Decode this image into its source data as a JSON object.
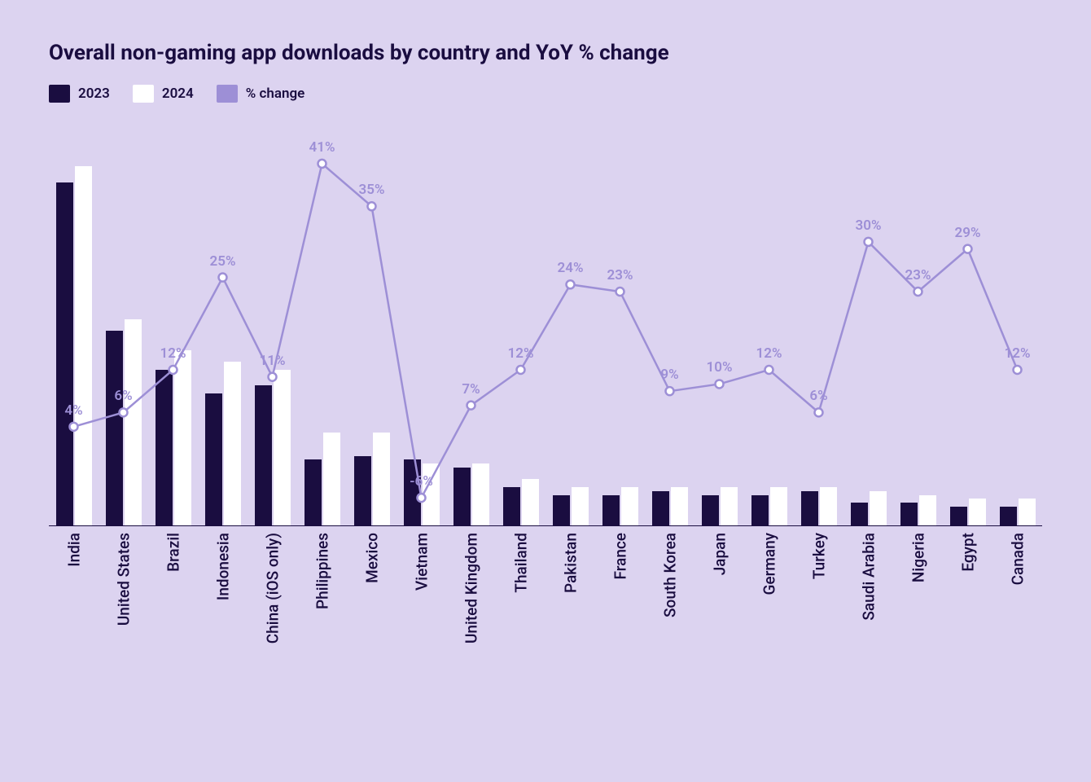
{
  "title": "Overall non-gaming app downloads by country and YoY % change",
  "legend": {
    "series2023": "2023",
    "series2024": "2024",
    "pctChange": "% change"
  },
  "colors": {
    "background": "#dcd3f0",
    "bar2023": "#1a0d40",
    "bar2024": "#ffffff",
    "line": "#9d8fd6",
    "lineWidth": 2.5,
    "markerFill": "#ffffff",
    "markerStroke": "#9d8fd6",
    "markerStrokeWidth": 2.5,
    "markerRadius": 5,
    "titleColor": "#1a0d40",
    "labelColor": "#1a0d40",
    "pctLabelColor": "#9d8fd6",
    "baselineColor": "#1a0d40",
    "titleFontSize": 26,
    "xLabelFontSize": 19,
    "pctLabelFontSize": 17,
    "legendFontSize": 17
  },
  "chart": {
    "type": "grouped-bar-with-line",
    "barMaxValue": 100,
    "pctRange": [
      -10,
      45
    ],
    "barWidthPx": 21,
    "barGapPx": 2,
    "plotHeightPx": 480,
    "countries": [
      {
        "name": "India",
        "v2023": 88,
        "v2024": 92,
        "pct": 4
      },
      {
        "name": "United States",
        "v2023": 50,
        "v2024": 53,
        "pct": 6
      },
      {
        "name": "Brazil",
        "v2023": 40,
        "v2024": 45,
        "pct": 12
      },
      {
        "name": "Indonesia",
        "v2023": 34,
        "v2024": 42,
        "pct": 25
      },
      {
        "name": "China (iOS only)",
        "v2023": 36,
        "v2024": 40,
        "pct": 11
      },
      {
        "name": "Philippines",
        "v2023": 17,
        "v2024": 24,
        "pct": 41
      },
      {
        "name": "Mexico",
        "v2023": 18,
        "v2024": 24,
        "pct": 35
      },
      {
        "name": "Vietnam",
        "v2023": 17,
        "v2024": 16,
        "pct": -6
      },
      {
        "name": "United Kingdom",
        "v2023": 15,
        "v2024": 16,
        "pct": 7
      },
      {
        "name": "Thailand",
        "v2023": 10,
        "v2024": 12,
        "pct": 12
      },
      {
        "name": "Pakistan",
        "v2023": 8,
        "v2024": 10,
        "pct": 24
      },
      {
        "name": "France",
        "v2023": 8,
        "v2024": 10,
        "pct": 23
      },
      {
        "name": "South Korea",
        "v2023": 9,
        "v2024": 10,
        "pct": 9
      },
      {
        "name": "Japan",
        "v2023": 8,
        "v2024": 10,
        "pct": 10
      },
      {
        "name": "Germany",
        "v2023": 8,
        "v2024": 10,
        "pct": 12
      },
      {
        "name": "Turkey",
        "v2023": 9,
        "v2024": 10,
        "pct": 6
      },
      {
        "name": "Saudi Arabia",
        "v2023": 6,
        "v2024": 9,
        "pct": 30
      },
      {
        "name": "Nigeria",
        "v2023": 6,
        "v2024": 8,
        "pct": 23
      },
      {
        "name": "Egypt",
        "v2023": 5,
        "v2024": 7,
        "pct": 29
      },
      {
        "name": "Canada",
        "v2023": 5,
        "v2024": 7,
        "pct": 12
      }
    ]
  }
}
